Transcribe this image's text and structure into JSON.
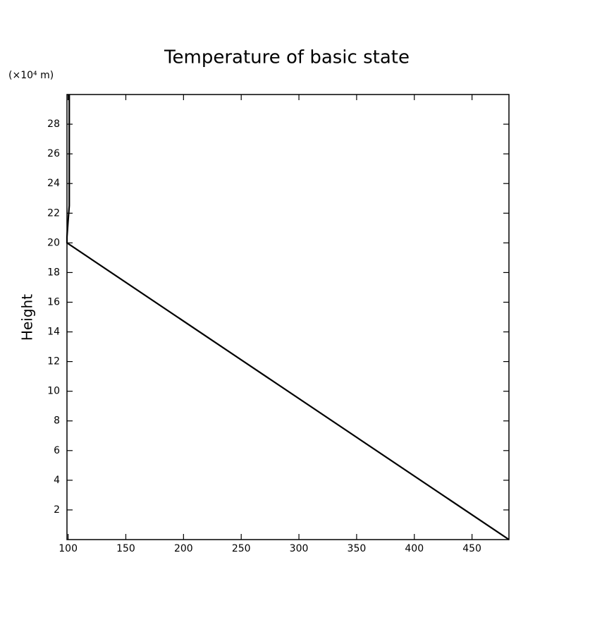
{
  "chart_data": {
    "type": "line",
    "title": "Temperature of basic state",
    "y_unit": "(×10⁴ m)",
    "y_label": "Height",
    "x": [
      482,
      99,
      99,
      100,
      101,
      101,
      101
    ],
    "values": [
      0,
      20,
      20.4,
      21.5,
      22.5,
      24,
      30
    ],
    "color": "#000000",
    "xlim": [
      99,
      482
    ],
    "xticks": [
      100,
      150,
      200,
      250,
      300,
      350,
      400,
      450
    ],
    "ylim": [
      0,
      30
    ],
    "yticks": [
      2,
      4,
      6,
      8,
      10,
      12,
      14,
      16,
      18,
      20,
      22,
      24,
      26,
      28
    ]
  }
}
